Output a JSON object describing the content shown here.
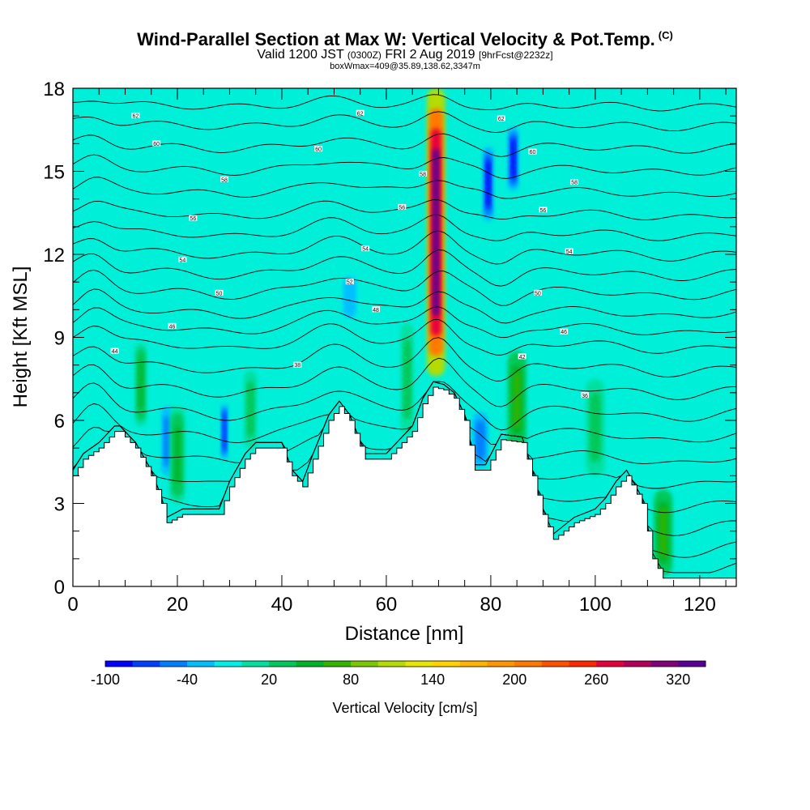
{
  "titles": {
    "main": "Wind-Parallel Section at Max W: Vertical Velocity & Pot.Temp.",
    "main_mark": "(C)",
    "valid": "Valid 1200 JST",
    "valid_z": "(0300Z)",
    "date": "FRI 2 Aug 2019",
    "fcst": "[9hrFcst@2232z]",
    "box": "boxWmax=409@35.89,138.62,3347m"
  },
  "chart_data": {
    "type": "heatmap",
    "title": "Wind-Parallel Section at Max W: Vertical Velocity & Pot.Temp.",
    "xlabel": "Distance [nm]",
    "ylabel": "Height [Kft MSL]",
    "xlim": [
      0,
      127
    ],
    "ylim": [
      0,
      18
    ],
    "xticks": [
      0,
      20,
      40,
      60,
      80,
      100,
      120
    ],
    "yticks": [
      0,
      3,
      6,
      9,
      12,
      15,
      18
    ],
    "background_value_cms": 0,
    "terrain": {
      "x": [
        0,
        2,
        5,
        8,
        9,
        12,
        15,
        17,
        18,
        21,
        24,
        28,
        30,
        33,
        35,
        40,
        42,
        44,
        46,
        49,
        51,
        53,
        56,
        60,
        62,
        65,
        67,
        69,
        71,
        73,
        75,
        77,
        79,
        82,
        86,
        88,
        90,
        92,
        94,
        96,
        100,
        102,
        104,
        106,
        109,
        111,
        113,
        116,
        120,
        124,
        127
      ],
      "y": [
        4.0,
        4.6,
        5.0,
        5.6,
        5.6,
        5.0,
        4.0,
        3.0,
        2.3,
        2.6,
        2.6,
        2.6,
        3.6,
        4.6,
        5.0,
        5.0,
        4.0,
        3.6,
        4.6,
        6.0,
        6.5,
        6.0,
        4.6,
        4.6,
        5.0,
        5.6,
        6.6,
        7.2,
        7.1,
        6.8,
        6.0,
        4.2,
        4.2,
        5.3,
        5.2,
        4.0,
        2.6,
        1.7,
        2.0,
        2.3,
        2.6,
        3.0,
        3.6,
        4.0,
        3.0,
        1.0,
        0.3,
        0.3,
        0.3,
        0.3,
        0.3
      ]
    },
    "vertical_velocity_features": [
      {
        "x_center": 69.5,
        "y_bottom": 7.6,
        "y_top": 18.0,
        "width_nm": 3.0,
        "peak_cms": 340
      },
      {
        "x_center": 79.5,
        "y_bottom": 13.2,
        "y_top": 15.9,
        "width_nm": 1.6,
        "peak_cms": -100
      },
      {
        "x_center": 84.3,
        "y_bottom": 14.3,
        "y_top": 16.6,
        "width_nm": 1.6,
        "peak_cms": -100
      },
      {
        "x_center": 29.0,
        "y_bottom": 4.6,
        "y_top": 6.6,
        "width_nm": 1.0,
        "peak_cms": -80
      },
      {
        "x_center": 18.0,
        "y_bottom": 4.0,
        "y_top": 6.5,
        "width_nm": 1.6,
        "peak_cms": -60
      },
      {
        "x_center": 53.0,
        "y_bottom": 9.6,
        "y_top": 11.3,
        "width_nm": 2.5,
        "peak_cms": -40
      },
      {
        "x_center": 78.0,
        "y_bottom": 4.3,
        "y_top": 6.3,
        "width_nm": 2.5,
        "peak_cms": -60
      },
      {
        "x_center": 76.5,
        "y_bottom": 3.6,
        "y_top": 4.2,
        "width_nm": 0.8,
        "peak_cms": -80
      },
      {
        "x_center": 85.0,
        "y_bottom": 5.0,
        "y_top": 8.5,
        "width_nm": 3.0,
        "peak_cms": 60
      },
      {
        "x_center": 20.0,
        "y_bottom": 3.0,
        "y_top": 6.5,
        "width_nm": 2.4,
        "peak_cms": 40
      },
      {
        "x_center": 13.0,
        "y_bottom": 5.8,
        "y_top": 8.8,
        "width_nm": 1.8,
        "peak_cms": 40
      },
      {
        "x_center": 113.0,
        "y_bottom": 0.4,
        "y_top": 3.5,
        "width_nm": 3.0,
        "peak_cms": 60
      },
      {
        "x_center": 34.0,
        "y_bottom": 5.0,
        "y_top": 7.8,
        "width_nm": 2.0,
        "peak_cms": 30
      },
      {
        "x_center": 64.0,
        "y_bottom": 5.5,
        "y_top": 9.5,
        "width_nm": 2.0,
        "peak_cms": 30
      },
      {
        "x_center": 100.0,
        "y_bottom": 4.0,
        "y_top": 7.5,
        "width_nm": 3.0,
        "peak_cms": 30
      }
    ],
    "theta_contours": {
      "base_heights_kft": [
        0.9,
        1.6,
        2.4,
        3.2,
        4.0,
        4.8,
        5.6,
        6.4,
        7.2,
        8.0,
        8.8,
        9.4,
        10.0,
        10.7,
        11.4,
        12.1,
        12.8,
        13.5,
        14.3,
        15.1,
        15.9,
        16.7,
        17.4
      ],
      "labels": [
        {
          "x": 12.0,
          "y": 17.0,
          "text": "62"
        },
        {
          "x": 55.0,
          "y": 17.1,
          "text": "62"
        },
        {
          "x": 82.0,
          "y": 16.9,
          "text": "62"
        },
        {
          "x": 16.0,
          "y": 16.0,
          "text": "60"
        },
        {
          "x": 47.0,
          "y": 15.8,
          "text": "60"
        },
        {
          "x": 88.0,
          "y": 15.7,
          "text": "60"
        },
        {
          "x": 29.0,
          "y": 14.7,
          "text": "58"
        },
        {
          "x": 67.0,
          "y": 14.9,
          "text": "58"
        },
        {
          "x": 96.0,
          "y": 14.6,
          "text": "58"
        },
        {
          "x": 23.0,
          "y": 13.3,
          "text": "56"
        },
        {
          "x": 63.0,
          "y": 13.7,
          "text": "56"
        },
        {
          "x": 90.0,
          "y": 13.6,
          "text": "56"
        },
        {
          "x": 21.0,
          "y": 11.8,
          "text": "54"
        },
        {
          "x": 56.0,
          "y": 12.2,
          "text": "54"
        },
        {
          "x": 95.0,
          "y": 12.1,
          "text": "54"
        },
        {
          "x": 53.0,
          "y": 11.0,
          "text": "52"
        },
        {
          "x": 28.0,
          "y": 10.6,
          "text": "50"
        },
        {
          "x": 89.0,
          "y": 10.6,
          "text": "50"
        },
        {
          "x": 58.0,
          "y": 10.0,
          "text": "48"
        },
        {
          "x": 19.0,
          "y": 9.4,
          "text": "46"
        },
        {
          "x": 94.0,
          "y": 9.2,
          "text": "46"
        },
        {
          "x": 8.0,
          "y": 8.5,
          "text": "44"
        },
        {
          "x": 86.0,
          "y": 8.3,
          "text": "42"
        },
        {
          "x": 43.0,
          "y": 8.0,
          "text": "38"
        },
        {
          "x": 98.0,
          "y": 6.9,
          "text": "36"
        }
      ]
    },
    "colorbar": {
      "title": "Vertical Velocity [cm/s]",
      "colors": [
        "#0000ff",
        "#0040ff",
        "#0080ff",
        "#00bfff",
        "#00efe6",
        "#00e0a0",
        "#00c85a",
        "#00b428",
        "#32b400",
        "#7cc800",
        "#b4dc00",
        "#e6e600",
        "#ffd200",
        "#ffb400",
        "#ff9600",
        "#ff7800",
        "#ff5000",
        "#ff2800",
        "#e6003c",
        "#b4005a",
        "#820078",
        "#5a0096"
      ],
      "tick_labels": [
        "-100",
        "-40",
        "20",
        "80",
        "140",
        "200",
        "260",
        "320"
      ],
      "tick_positions": [
        0,
        3,
        6,
        9,
        12,
        15,
        18,
        21
      ],
      "range": [
        -100,
        340
      ]
    }
  }
}
